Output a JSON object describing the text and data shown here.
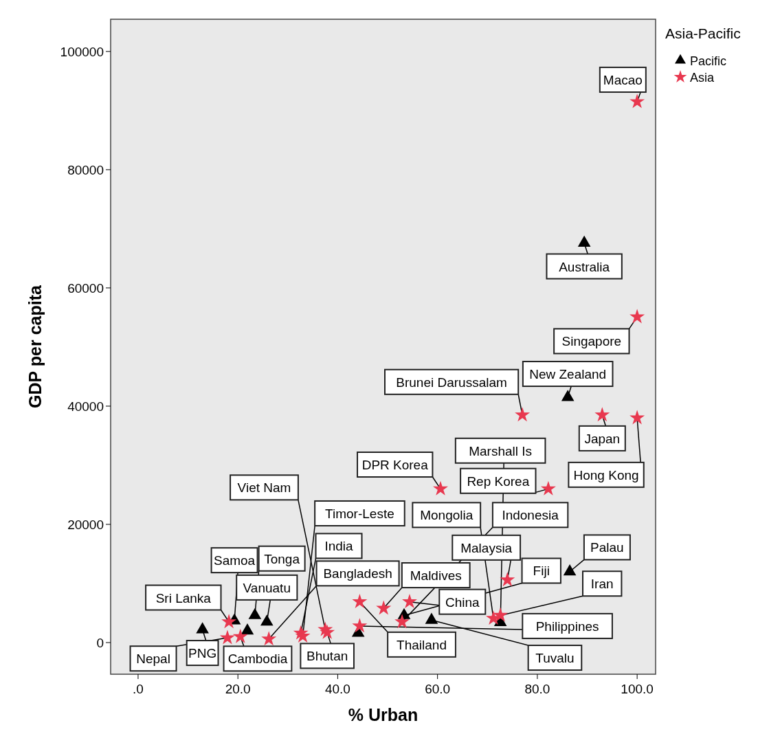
{
  "chart_data": {
    "type": "scatter",
    "xlabel": "% Urban",
    "ylabel": "GDP per capita",
    "legend_title": "Asia-Pacific",
    "legend": "top right",
    "grid": false,
    "xlim": [
      -5.5,
      103.7
    ],
    "ylim": [
      -5350,
      105450
    ],
    "xticks": [
      {
        "value": 0,
        "label": ".0"
      },
      {
        "value": 20,
        "label": "20.0"
      },
      {
        "value": 40,
        "label": "40.0"
      },
      {
        "value": 60,
        "label": "60.0"
      },
      {
        "value": 80,
        "label": "80.0"
      },
      {
        "value": 100,
        "label": "100.0"
      }
    ],
    "yticks": [
      0,
      20000,
      40000,
      60000,
      80000,
      100000
    ],
    "series": [
      {
        "name": "Pacific",
        "color": "#000000",
        "marker": "triangle",
        "x": [
          89.4,
          86.1,
          86.5,
          72.6,
          58.8,
          53.3,
          44.1,
          25.8,
          12.9,
          19.3,
          23.4,
          21.9
        ],
        "values": [
          67600,
          41500,
          12000,
          3400,
          3800,
          4600,
          1600,
          3500,
          2200,
          3700,
          4600,
          2000
        ]
      },
      {
        "name": "Asia",
        "color": "#e8384f",
        "marker": "star",
        "x": [
          100,
          100,
          100,
          93.0,
          77.0,
          60.6,
          82.2,
          74.0,
          54.4,
          44.4,
          49.2,
          52.9,
          44.4,
          72.6,
          71.2,
          17.9,
          20.5,
          18.2,
          26.2,
          32.6,
          33.0,
          37.5,
          37.9
        ],
        "values": [
          91500,
          55100,
          38000,
          38500,
          38500,
          26000,
          26000,
          10600,
          6900,
          6900,
          5800,
          3500,
          2800,
          4600,
          4100,
          800,
          1000,
          3500,
          600,
          1600,
          1100,
          2200,
          1700
        ]
      }
    ],
    "annotations": [
      {
        "text": "Macao",
        "x": 100,
        "y": 91500
      },
      {
        "text": "Australia",
        "x": 89.4,
        "y": 67600
      },
      {
        "text": "Singapore",
        "x": 100,
        "y": 55100
      },
      {
        "text": "New Zealand",
        "x": 86.1,
        "y": 41500
      },
      {
        "text": "Japan",
        "x": 93.0,
        "y": 38500
      },
      {
        "text": "Brunei Darussalam",
        "x": 77.0,
        "y": 38500
      },
      {
        "text": "Hong Kong",
        "x": 100,
        "y": 38000
      },
      {
        "text": "DPR Korea",
        "x": 60.6,
        "y": 26000
      },
      {
        "text": "Rep Korea",
        "x": 82.2,
        "y": 26000
      },
      {
        "text": "Thailand",
        "x": 44.4,
        "y": 6900
      },
      {
        "text": "Malaysia",
        "x": 74.0,
        "y": 10600
      },
      {
        "text": "Palau",
        "x": 86.5,
        "y": 12000
      },
      {
        "text": "PNG",
        "x": 12.9,
        "y": 2200
      },
      {
        "text": "Bhutan",
        "x": 37.9,
        "y": 1700
      },
      {
        "text": "Maldives",
        "x": 49.2,
        "y": 5800
      },
      {
        "text": "Tonga",
        "x": 23.4,
        "y": 4600
      },
      {
        "text": "Cambodia",
        "x": 20.5,
        "y": 1000
      },
      {
        "text": "India",
        "x": 32.6,
        "y": 1600
      },
      {
        "text": "Vanuatu",
        "x": 25.8,
        "y": 3500
      },
      {
        "text": "Fiji",
        "x": 53.3,
        "y": 4600
      },
      {
        "text": "China",
        "x": 54.4,
        "y": 6900
      },
      {
        "text": "Sri Lanka",
        "x": 18.2,
        "y": 3500
      },
      {
        "text": "Samoa",
        "x": 19.3,
        "y": 3700
      },
      {
        "text": "Viet Nam",
        "x": 37.5,
        "y": 2200
      },
      {
        "text": "Tuvalu",
        "x": 58.8,
        "y": 3800
      },
      {
        "text": "Iran",
        "x": 72.6,
        "y": 4600
      },
      {
        "text": "Marshall Is",
        "x": 72.6,
        "y": 3400
      },
      {
        "text": "Nepal",
        "x": 17.9,
        "y": 800
      },
      {
        "text": "Philippines",
        "x": 44.4,
        "y": 2800
      },
      {
        "text": "Indonesia",
        "x": 52.9,
        "y": 3500
      },
      {
        "text": "Mongolia",
        "x": 71.2,
        "y": 4100
      },
      {
        "text": "Bangladesh",
        "x": 26.2,
        "y": 600
      },
      {
        "text": "Timor-Leste",
        "x": 33.0,
        "y": 1100
      }
    ]
  }
}
